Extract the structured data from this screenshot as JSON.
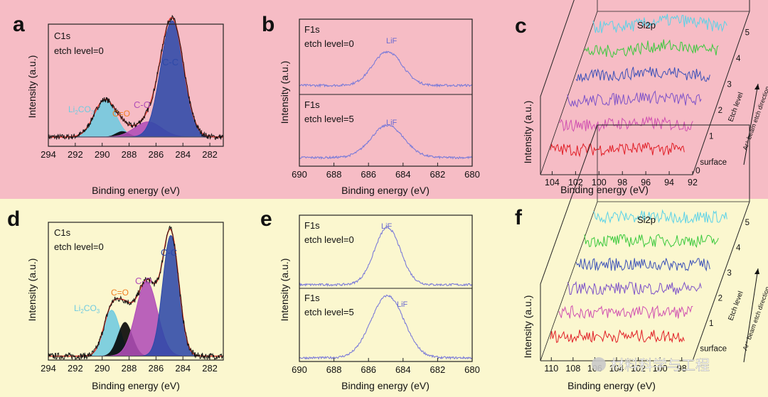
{
  "figure": {
    "panels": {
      "a": {
        "letter": "a",
        "title": "C1s",
        "subtitle": "etch level=0",
        "peaks": {
          "cc": "C-C",
          "co": "C-O",
          "c_o": "C=O",
          "li": "Li",
          "li_sub": "2",
          "li_rest": "CO",
          "li_sub2": "3"
        }
      },
      "b": {
        "letter": "b",
        "top_title": "F1s",
        "top_subtitle": "etch level=0",
        "top_peak": "LiF",
        "bottom_title": "F1s",
        "bottom_subtitle": "etch level=5",
        "bottom_peak": "LiF"
      },
      "c": {
        "letter": "c",
        "title": "Si2p",
        "etch_label": "Etch level",
        "beam_label": "Ar⁺ beam etch direction",
        "levels": [
          "surface",
          "1",
          "2",
          "3",
          "4",
          "5"
        ],
        "zero": "0"
      },
      "d": {
        "letter": "d",
        "title": "C1s",
        "subtitle": "etch level=0",
        "peaks": {
          "cc": "C-C",
          "co": "C-O",
          "c_o": "C=O",
          "li": "Li",
          "li_sub": "2",
          "li_rest": "CO",
          "li_sub2": "3"
        }
      },
      "e": {
        "letter": "e",
        "top_title": "F1s",
        "top_subtitle": "etch level=0",
        "top_peak": "LiF",
        "bottom_title": "F1s",
        "bottom_subtitle": "etch level=5",
        "bottom_peak": "LiF"
      },
      "f": {
        "letter": "f",
        "title": "Si2p",
        "etch_label": "Etch level",
        "beam_label": "Ar⁺ beam etch direction",
        "levels": [
          "surface",
          "1",
          "2",
          "3",
          "4",
          "5"
        ]
      }
    },
    "watermark": "材料科学与工程"
  },
  "colors": {
    "bg_top": "#f6bcc5",
    "bg_bottom": "#fbf7cf",
    "c_cc": "#2e49a8",
    "c_co": "#b14db7",
    "c_c_o": "#f07f24",
    "c_li": "#6fcbe0",
    "envelope": "#e23b30",
    "raw": "#111111",
    "xps_line": "#7b7bd8",
    "waterfall": [
      "#e11e26",
      "#d04fb0",
      "#7d52c8",
      "#3a50b8",
      "#3ac93c",
      "#5ad2e8"
    ]
  },
  "chart_data": [
    {
      "panel": "a",
      "type": "line",
      "title": "C1s etch level=0",
      "xlabel": "Binding energy (eV)",
      "ylabel": "Intensity (a.u.)",
      "xlim": [
        294,
        281
      ],
      "xticks": [
        294,
        292,
        290,
        288,
        286,
        284,
        282
      ],
      "x_reversed": true,
      "ylim": [
        0,
        1.05
      ],
      "series": [
        {
          "name": "Li2CO3",
          "component": "li",
          "center": 289.8,
          "sigma": 0.8,
          "amplitude": 0.32
        },
        {
          "name": "C=O",
          "component": "c_o",
          "center": 288.5,
          "sigma": 0.5,
          "amplitude": 0.05
        },
        {
          "name": "C-O",
          "component": "co",
          "center": 286.6,
          "sigma": 1.0,
          "amplitude": 0.13
        },
        {
          "name": "C-C",
          "component": "cc",
          "center": 284.8,
          "sigma": 0.85,
          "amplitude": 1.0
        }
      ],
      "baseline": 0.08
    },
    {
      "panel": "b_top",
      "type": "line",
      "title": "F1s etch level=0",
      "ylabel": "Intensity (a.u.)",
      "xlim": [
        690,
        680
      ],
      "x_reversed": true,
      "series": [
        {
          "name": "LiF",
          "center": 684.9,
          "sigma": 0.85,
          "amplitude": 0.45
        }
      ],
      "baseline": 0.12
    },
    {
      "panel": "b_bottom",
      "type": "line",
      "title": "F1s etch level=5",
      "xlabel": "Binding energy (eV)",
      "ylabel": "Intensity (a.u.)",
      "xlim": [
        690,
        680
      ],
      "xticks": [
        690,
        688,
        686,
        684,
        682,
        680
      ],
      "x_reversed": true,
      "series": [
        {
          "name": "LiF",
          "center": 684.9,
          "sigma": 0.95,
          "amplitude": 0.45
        }
      ],
      "baseline": 0.12
    },
    {
      "panel": "c",
      "type": "line",
      "title": "Si2p",
      "xlabel": "Binding energy (eV)",
      "ylabel": "Intensity (a.u.)",
      "xlim": [
        105,
        92
      ],
      "xticks": [
        104,
        102,
        100,
        98,
        96,
        94,
        92
      ],
      "x_reversed": true,
      "depth_levels": [
        "surface",
        "1",
        "2",
        "3",
        "4",
        "5"
      ],
      "peak_center": 97,
      "note": "noisy spectra, weak broad peak near 96-98 eV"
    },
    {
      "panel": "d",
      "type": "line",
      "title": "C1s etch level=0",
      "xlabel": "Binding energy (eV)",
      "ylabel": "Intensity (a.u.)",
      "xlim": [
        294,
        281
      ],
      "xticks": [
        294,
        292,
        290,
        288,
        286,
        284,
        282
      ],
      "x_reversed": true,
      "ylim": [
        0,
        1.05
      ],
      "series": [
        {
          "name": "Li2CO3",
          "component": "li",
          "center": 289.3,
          "sigma": 0.6,
          "amplitude": 0.35
        },
        {
          "name": "C=O",
          "component": "c_o",
          "center": 288.3,
          "sigma": 0.55,
          "amplitude": 0.26
        },
        {
          "name": "C-O",
          "component": "co",
          "center": 286.7,
          "sigma": 0.8,
          "amplitude": 0.57
        },
        {
          "name": "C-C",
          "component": "cc",
          "center": 284.9,
          "sigma": 0.6,
          "amplitude": 0.92
        }
      ],
      "baseline": 0.03
    },
    {
      "panel": "e_top",
      "type": "line",
      "title": "F1s etch level=0",
      "ylabel": "Intensity (a.u.)",
      "xlim": [
        690,
        680
      ],
      "x_reversed": true,
      "series": [
        {
          "name": "LiF",
          "center": 684.9,
          "sigma": 0.75,
          "amplitude": 0.78
        }
      ],
      "baseline": 0.05
    },
    {
      "panel": "e_bottom",
      "type": "line",
      "title": "F1s etch level=5",
      "xlabel": "Binding energy (eV)",
      "ylabel": "Intensity (a.u.)",
      "xlim": [
        690,
        680
      ],
      "xticks": [
        690,
        688,
        686,
        684,
        682,
        680
      ],
      "x_reversed": true,
      "series": [
        {
          "name": "LiF",
          "center": 684.9,
          "sigma": 0.95,
          "amplitude": 0.85
        }
      ],
      "baseline": 0.05
    },
    {
      "panel": "f",
      "type": "line",
      "title": "Si2p",
      "xlabel": "Binding energy (eV)",
      "ylabel": "Intensity (a.u.)",
      "xlim": [
        111,
        97
      ],
      "xticks": [
        110,
        108,
        106,
        104,
        102,
        100,
        98
      ],
      "x_reversed": true,
      "depth_levels": [
        "surface",
        "1",
        "2",
        "3",
        "4",
        "5"
      ],
      "note": "noisy flat spectra at all etch levels"
    }
  ]
}
